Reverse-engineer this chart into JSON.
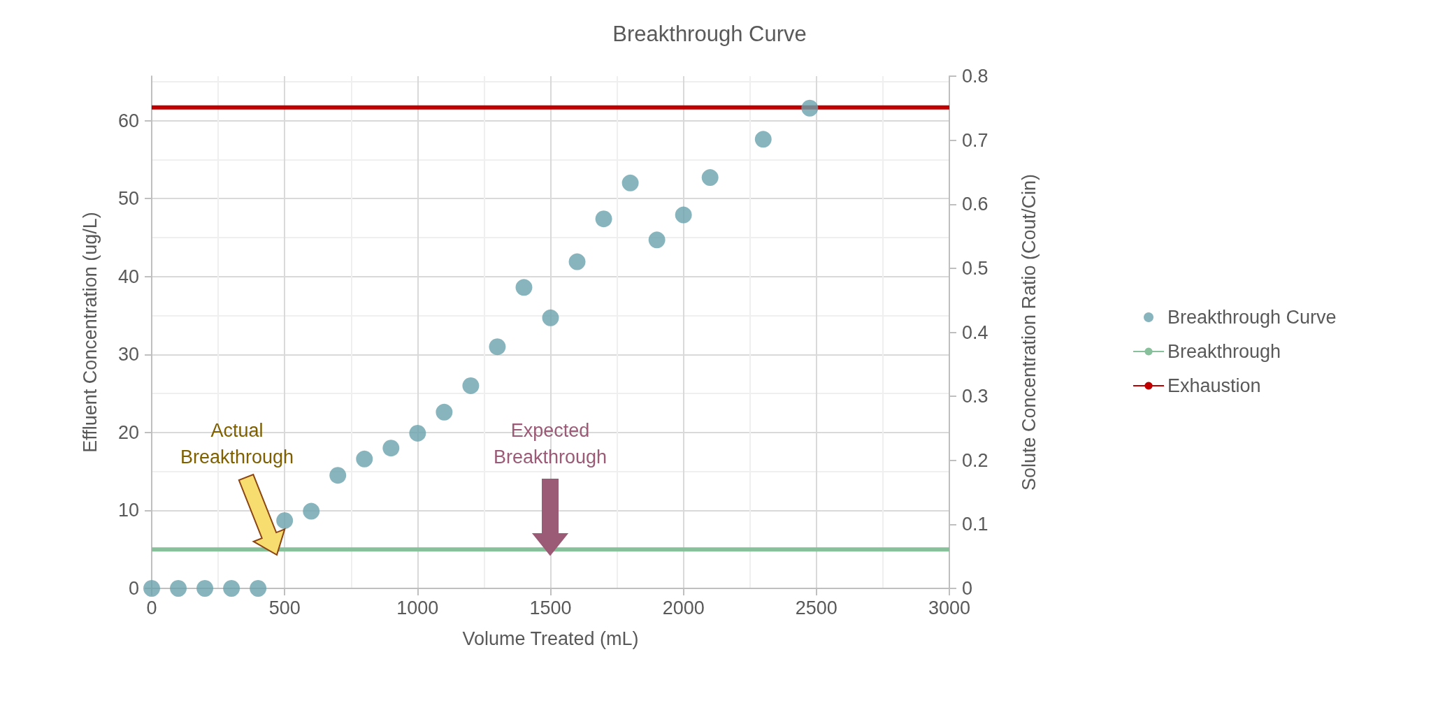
{
  "chart_data": {
    "type": "scatter",
    "title": "Breakthrough Curve",
    "xlabel": "Volume Treated (mL)",
    "ylabel": "Effluent Concentration (ug/L)",
    "y2label": "Solute Concentration Ratio (Cout/Cin)",
    "x": [
      0,
      100,
      200,
      300,
      400,
      500,
      600,
      700,
      800,
      900,
      1000,
      1100,
      1200,
      1300,
      1400,
      1500,
      1600,
      1700,
      1800,
      1900,
      2000,
      2100,
      2300,
      2475
    ],
    "series": [
      {
        "name": "Breakthrough Curve",
        "color": "#6aa3ad",
        "values": [
          0,
          0,
          0,
          0,
          0,
          8.7,
          9.9,
          14.5,
          16.6,
          18.0,
          19.9,
          22.6,
          26.0,
          31.0,
          38.6,
          34.7,
          41.9,
          47.4,
          52.0,
          44.7,
          47.9,
          52.7,
          57.6,
          61.6
        ]
      }
    ],
    "ref_lines": [
      {
        "axis": "y",
        "value": 5,
        "label": "Breakthrough",
        "color": "#88c09c",
        "line_style": "solid"
      },
      {
        "axis": "y",
        "value": 61.7,
        "label": "Exhaustion",
        "color": "#c00000",
        "line_style": "solid"
      }
    ],
    "annotations": [
      "Actual\nBreakthrough",
      "Expected\nBreakthrough"
    ],
    "xlim": [
      0,
      3000
    ],
    "xticks": [
      0,
      500,
      1000,
      1500,
      2000,
      2500,
      3000
    ],
    "ylim": [
      0,
      65.7
    ],
    "yticks": [
      0,
      10,
      20,
      30,
      40,
      50,
      60
    ],
    "y2lim": [
      0,
      0.8
    ],
    "y2ticks": [
      0,
      0.1,
      0.2,
      0.3,
      0.4,
      0.5,
      0.6,
      0.7,
      0.8
    ],
    "grid": true,
    "legend": "right",
    "marker": "circle"
  }
}
